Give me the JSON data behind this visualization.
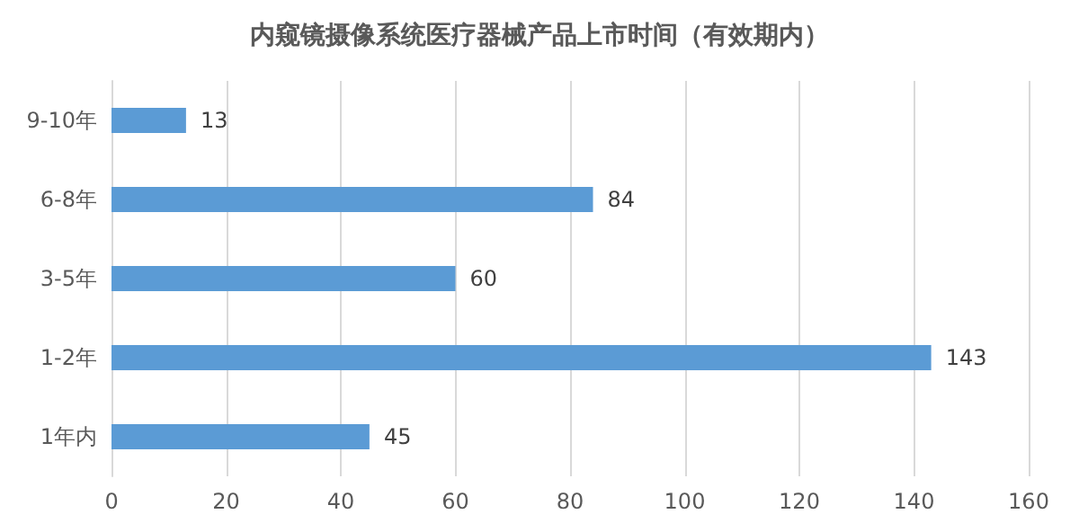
{
  "chart_data": {
    "type": "bar",
    "orientation": "horizontal",
    "title": "内窥镜摄像系统医疗器械产品上市时间（有效期内）",
    "categories": [
      "9-10年",
      "6-8年",
      "3-5年",
      "1-2年",
      "1年内"
    ],
    "values": [
      13,
      84,
      60,
      143,
      45
    ],
    "color": "#5b9bd5",
    "xlim": [
      0,
      160
    ],
    "xticks": [
      0,
      20,
      40,
      60,
      80,
      100,
      120,
      140,
      160
    ],
    "grid": "x",
    "data_labels": true
  }
}
